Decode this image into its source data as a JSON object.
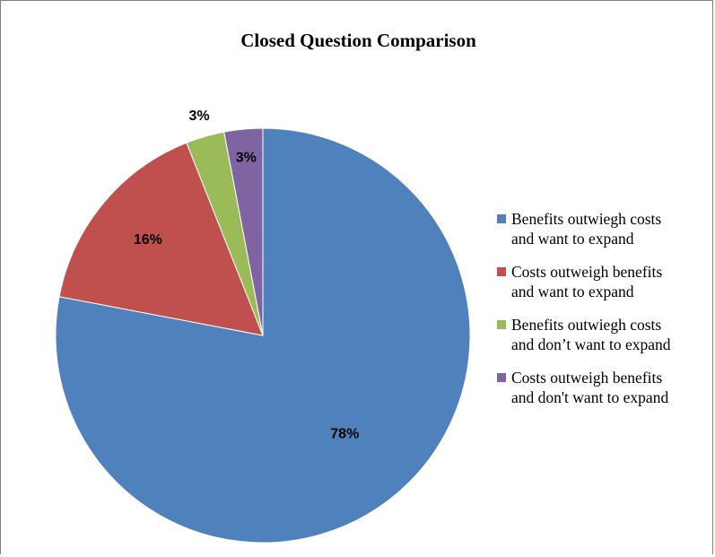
{
  "chart_data": {
    "type": "pie",
    "title": "Closed Question Comparison",
    "slices": [
      {
        "label_lines": [
          "Benefits outwiegh costs",
          "and want to expand"
        ],
        "value": 78,
        "data_label": "78%",
        "color": "#4F81BD"
      },
      {
        "label_lines": [
          "Costs outweigh benefits",
          "and want to expand"
        ],
        "value": 16,
        "data_label": "16%",
        "color": "#C0504D"
      },
      {
        "label_lines": [
          "Benefits outwiegh costs",
          "and don’t want to expand"
        ],
        "value": 3,
        "data_label": "3%",
        "color": "#9BBB59"
      },
      {
        "label_lines": [
          "Costs outweigh benefits",
          "and don't want to expand"
        ],
        "value": 3,
        "data_label": "3%",
        "color": "#8064A2"
      }
    ],
    "start_angle": "12 o'clock",
    "direction": "clockwise",
    "legend_position": "right"
  }
}
